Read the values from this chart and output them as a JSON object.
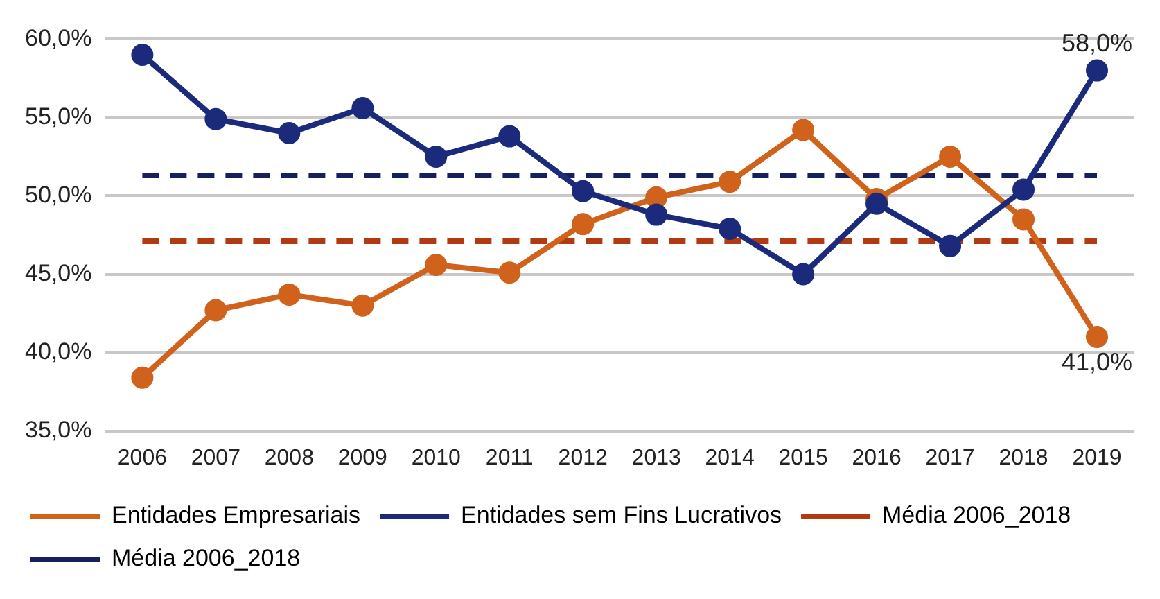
{
  "chart_data": {
    "type": "line",
    "categories": [
      "2006",
      "2007",
      "2008",
      "2009",
      "2010",
      "2011",
      "2012",
      "2013",
      "2014",
      "2015",
      "2016",
      "2017",
      "2018",
      "2019"
    ],
    "series": [
      {
        "name": "Entidades Empresariais",
        "color": "#d0621c",
        "values": [
          38.4,
          42.7,
          43.7,
          43.0,
          45.6,
          45.1,
          48.2,
          49.9,
          50.9,
          54.2,
          49.8,
          52.5,
          48.5,
          41.0
        ],
        "value_labels": [
          null,
          null,
          null,
          null,
          null,
          null,
          null,
          null,
          null,
          null,
          null,
          null,
          null,
          "41,0%"
        ]
      },
      {
        "name": "Entidades sem Fins Lucrativos",
        "color": "#1c2a7c",
        "values": [
          59.0,
          54.9,
          54.0,
          55.6,
          52.5,
          53.8,
          50.3,
          48.8,
          47.9,
          45.0,
          49.5,
          46.8,
          50.4,
          58.0
        ],
        "value_labels": [
          null,
          null,
          null,
          null,
          null,
          null,
          null,
          null,
          null,
          null,
          null,
          null,
          null,
          "58,0%"
        ]
      },
      {
        "name": "Média 2006_2018",
        "color": "#b23a12",
        "line_style": "dashed",
        "marker": "none",
        "values": [
          47.1,
          47.1,
          47.1,
          47.1,
          47.1,
          47.1,
          47.1,
          47.1,
          47.1,
          47.1,
          47.1,
          47.1,
          47.1,
          47.1
        ]
      },
      {
        "name": "Média 2006_2018",
        "color": "#16205e",
        "line_style": "dashed",
        "marker": "none",
        "values": [
          51.3,
          51.3,
          51.3,
          51.3,
          51.3,
          51.3,
          51.3,
          51.3,
          51.3,
          51.3,
          51.3,
          51.3,
          51.3,
          51.3
        ]
      }
    ],
    "ylim": [
      35,
      60
    ],
    "yticks": [
      {
        "value": 35,
        "label": "35,0%"
      },
      {
        "value": 40,
        "label": "40,0%"
      },
      {
        "value": 45,
        "label": "45,0%"
      },
      {
        "value": 50,
        "label": "50,0%"
      },
      {
        "value": 55,
        "label": "55,0%"
      },
      {
        "value": 60,
        "label": "60,0%"
      }
    ],
    "grid": "y",
    "legend": "bottom",
    "marker": "circle",
    "line_style": "solid"
  }
}
